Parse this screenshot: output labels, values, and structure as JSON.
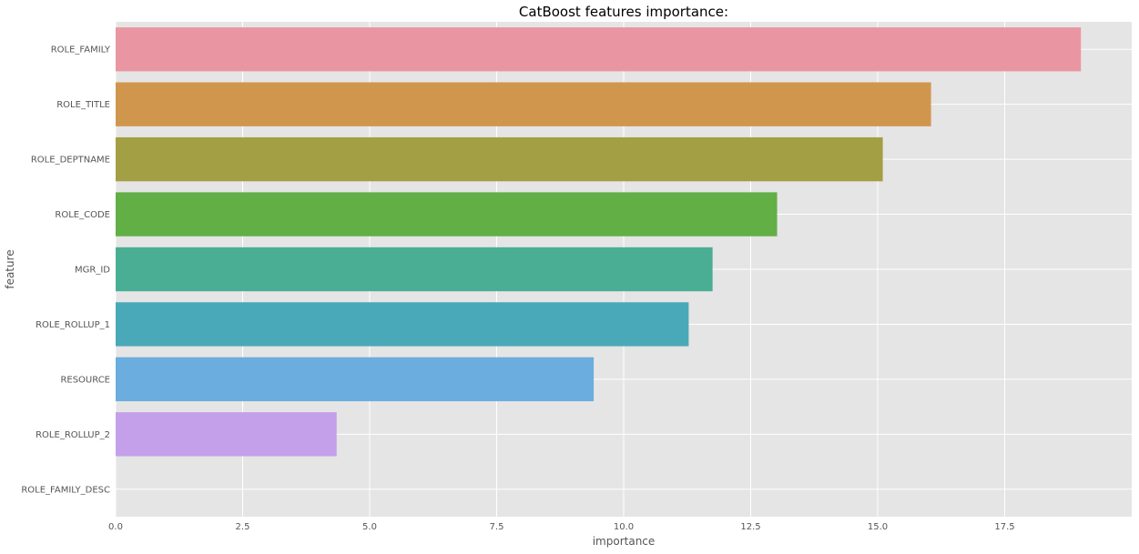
{
  "chart_data": {
    "type": "bar",
    "orientation": "horizontal",
    "title": "CatBoost features importance:",
    "xlabel": "importance",
    "ylabel": "feature",
    "xlim": [
      0,
      20.0
    ],
    "xticks": [
      0.0,
      2.5,
      5.0,
      7.5,
      10.0,
      12.5,
      15.0,
      17.5
    ],
    "xtick_labels": [
      "0.0",
      "2.5",
      "5.0",
      "7.5",
      "10.0",
      "12.5",
      "15.0",
      "17.5"
    ],
    "grid": true,
    "categories": [
      "ROLE_FAMILY",
      "ROLE_TITLE",
      "ROLE_DEPTNAME",
      "ROLE_CODE",
      "MGR_ID",
      "ROLE_ROLLUP_1",
      "RESOURCE",
      "ROLE_ROLLUP_2",
      "ROLE_FAMILY_DESC"
    ],
    "values": [
      19.0,
      16.05,
      15.1,
      13.02,
      11.75,
      11.28,
      9.41,
      4.35,
      0.0
    ],
    "colors": [
      "#ea96a2",
      "#d1964d",
      "#a29f45",
      "#62af46",
      "#49ae94",
      "#4aa9b8",
      "#6aadde",
      "#c49fea",
      "#eb95d0"
    ]
  }
}
